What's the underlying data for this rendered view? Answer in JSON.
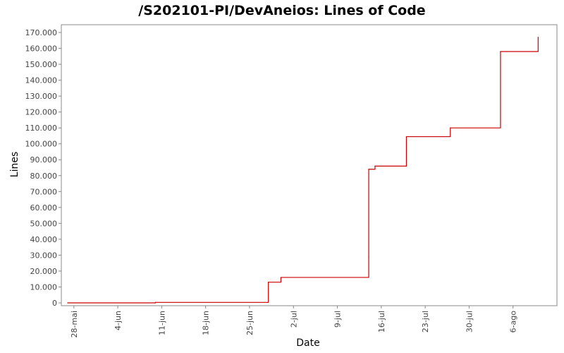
{
  "chart_data": {
    "type": "line",
    "step": true,
    "title": "/S202101-PI/DevAneios: Lines of Code",
    "xlabel": "Date",
    "ylabel": "Lines",
    "ylim": [
      0,
      170000
    ],
    "y_ticks": [
      {
        "value": 0,
        "label": "0"
      },
      {
        "value": 10000,
        "label": "10.000"
      },
      {
        "value": 20000,
        "label": "20.000"
      },
      {
        "value": 30000,
        "label": "30.000"
      },
      {
        "value": 40000,
        "label": "40.000"
      },
      {
        "value": 50000,
        "label": "50.000"
      },
      {
        "value": 60000,
        "label": "60.000"
      },
      {
        "value": 70000,
        "label": "70.000"
      },
      {
        "value": 80000,
        "label": "80.000"
      },
      {
        "value": 90000,
        "label": "90.000"
      },
      {
        "value": 100000,
        "label": "100.000"
      },
      {
        "value": 110000,
        "label": "110.000"
      },
      {
        "value": 120000,
        "label": "120.000"
      },
      {
        "value": 130000,
        "label": "130.000"
      },
      {
        "value": 140000,
        "label": "140.000"
      },
      {
        "value": 150000,
        "label": "150.000"
      },
      {
        "value": 160000,
        "label": "160.000"
      },
      {
        "value": 170000,
        "label": "170.000"
      }
    ],
    "xlim": [
      "2021-05-26",
      "2021-08-13"
    ],
    "x_ticks": [
      {
        "date": "2021-05-28",
        "label": "28-mai"
      },
      {
        "date": "2021-06-04",
        "label": "4-jun"
      },
      {
        "date": "2021-06-11",
        "label": "11-jun"
      },
      {
        "date": "2021-06-18",
        "label": "18-jun"
      },
      {
        "date": "2021-06-25",
        "label": "25-jun"
      },
      {
        "date": "2021-07-02",
        "label": "2-jul"
      },
      {
        "date": "2021-07-09",
        "label": "9-jul"
      },
      {
        "date": "2021-07-16",
        "label": "16-jul"
      },
      {
        "date": "2021-07-23",
        "label": "23-jul"
      },
      {
        "date": "2021-07-30",
        "label": "30-jul"
      },
      {
        "date": "2021-08-06",
        "label": "6-ago"
      }
    ],
    "grid": false,
    "legend": "none",
    "series": [
      {
        "color": "#cc0000",
        "points": [
          {
            "date": "2021-05-27",
            "y": 0
          },
          {
            "date": "2021-06-10",
            "y": 300
          },
          {
            "date": "2021-06-28",
            "y": 13000
          },
          {
            "date": "2021-06-30",
            "y": 16000
          },
          {
            "date": "2021-07-14",
            "y": 29000
          },
          {
            "date": "2021-07-14",
            "y": 84000
          },
          {
            "date": "2021-07-15",
            "y": 86000
          },
          {
            "date": "2021-07-20",
            "y": 101000
          },
          {
            "date": "2021-07-20",
            "y": 104500
          },
          {
            "date": "2021-07-27",
            "y": 110000
          },
          {
            "date": "2021-08-04",
            "y": 158000
          },
          {
            "date": "2021-08-10",
            "y": 167000
          }
        ]
      }
    ]
  }
}
